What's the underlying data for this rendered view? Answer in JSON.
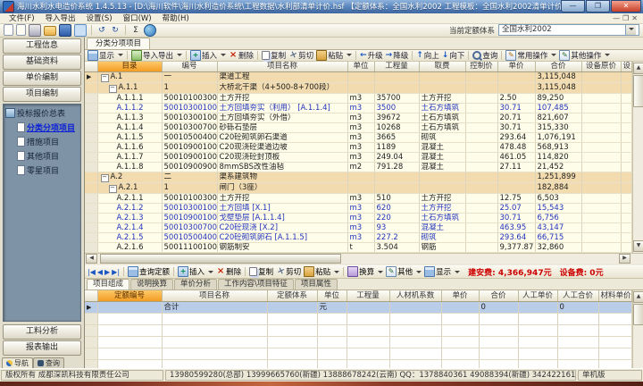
{
  "window": {
    "title": "海川水利水电造价系统 1.4.5.13 - [D:\\海川软件\\海川水利造价系统\\工程数据\\水利部清单计价.hsf 【定额体系：全国水利2002 工程模板：全国水利2002清单计价】]",
    "controls": {
      "minimize": "—",
      "maximize": "❐",
      "close": "✕"
    },
    "mdi_controls": [
      "—",
      "❐",
      "✕"
    ]
  },
  "menu": {
    "items": [
      "文件(F)",
      "导入导出",
      "设置(S)",
      "窗口(W)",
      "帮助(H)"
    ]
  },
  "quickbar": {
    "icons": [
      "new-file-icon",
      "open-file-icon",
      "print-icon",
      "folder-open-icon",
      "save-icon",
      "preview-icon",
      "undo-icon",
      "redo-icon",
      "sigma-icon",
      "globe-icon"
    ],
    "quota_label": "当前定额体系",
    "quota_value": "全国水利2002"
  },
  "sidebar": {
    "buttons_top": [
      "工程信息",
      "基础资料",
      "单价编制",
      "项目编制"
    ],
    "tree_root": "投标报价总表",
    "tree_items": [
      {
        "label": "分类分项项目",
        "active": true
      },
      {
        "label": "措施项目",
        "active": false
      },
      {
        "label": "其他项目",
        "active": false
      },
      {
        "label": "零星项目",
        "active": false
      }
    ],
    "buttons_bottom": [
      "工料分析",
      "报表输出"
    ],
    "tabs": [
      {
        "label": "导航",
        "icon": "compass-icon",
        "active": true
      },
      {
        "label": "查询",
        "icon": "binoculars-icon",
        "active": false
      }
    ]
  },
  "main": {
    "tab": "分类分项项目",
    "toolbar": [
      {
        "label": "显示",
        "icon": "table-icon",
        "caret": true
      },
      {
        "label": "导入导出",
        "icon": "import-export-icon",
        "caret": true,
        "sep": true
      },
      {
        "label": "插入",
        "icon": "insert-icon",
        "caret": true,
        "sep": true
      },
      {
        "label": "删除",
        "icon": "delete-icon"
      },
      {
        "label": "复制",
        "icon": "copy-icon",
        "sep": true
      },
      {
        "label": "剪切",
        "icon": "cut-icon"
      },
      {
        "label": "粘贴",
        "icon": "paste-icon",
        "caret": true
      },
      {
        "label": "升级",
        "arrow": "←",
        "sep": true
      },
      {
        "label": "降级",
        "arrow": "→"
      },
      {
        "label": "向上",
        "arrow": "↑",
        "sep": true
      },
      {
        "label": "向下",
        "arrow": "↓"
      },
      {
        "label": "查询",
        "icon": "search-icon",
        "sep": true
      },
      {
        "label": "常用操作",
        "icon": "common-ops-icon",
        "caret": true,
        "sep": true
      },
      {
        "label": "其他操作",
        "icon": "other-ops-icon",
        "caret": true
      }
    ],
    "grid": {
      "columns": [
        "目录",
        "编号",
        "项目名称",
        "单位",
        "工程量",
        "取费",
        "控制价",
        "单价",
        "合价",
        "设备原价",
        "设"
      ],
      "rows": [
        {
          "dir": "A.1",
          "code": "一",
          "name": "渠道工程",
          "unit": "",
          "qty": "",
          "fee": "",
          "price": "",
          "total": "3,115,048",
          "lvl": 0,
          "group": true,
          "sel": true
        },
        {
          "dir": "A.1.1",
          "code": "1",
          "name": "大桥北干渠（4+500-8+700段）",
          "unit": "",
          "qty": "",
          "fee": "",
          "price": "",
          "total": "3,115,048",
          "lvl": 1,
          "group": true
        },
        {
          "dir": "A.1.1.1",
          "code": "500101003001",
          "name": "土方开挖",
          "unit": "m3",
          "qty": "35700",
          "fee": "土方开挖",
          "price": "2.50",
          "total": "89,250",
          "lvl": 2
        },
        {
          "dir": "A.1.1.2",
          "code": "500103001001",
          "name": "土方回填夯实（利用） [A.1.1.4]",
          "unit": "m3",
          "qty": "3500",
          "fee": "土石方填筑",
          "price": "30.71",
          "total": "107,485",
          "lvl": 2,
          "blue": true
        },
        {
          "dir": "A.1.1.3",
          "code": "500103001002",
          "name": "土方回填夯实（外借）",
          "unit": "m3",
          "qty": "39672",
          "fee": "土石方填筑",
          "price": "20.71",
          "total": "821,607",
          "lvl": 2
        },
        {
          "dir": "A.1.1.4",
          "code": "500103007001",
          "name": "砂砾石垫层",
          "unit": "m3",
          "qty": "10268",
          "fee": "土石方填筑",
          "price": "30.71",
          "total": "315,330",
          "lvl": 2
        },
        {
          "dir": "A.1.1.5",
          "code": "500105004001",
          "name": "C20砼砌筑卵石渠道",
          "unit": "m3",
          "qty": "3665",
          "fee": "砌筑",
          "price": "293.64",
          "total": "1,076,191",
          "lvl": 2
        },
        {
          "dir": "A.1.1.6",
          "code": "500109001001",
          "name": "C20现浇砼渠道边坡",
          "unit": "m3",
          "qty": "1189",
          "fee": "混凝土",
          "price": "478.48",
          "total": "568,913",
          "lvl": 2
        },
        {
          "dir": "A.1.1.7",
          "code": "500109001002",
          "name": "C20现浇砼封顶板",
          "unit": "m3",
          "qty": "249.04",
          "fee": "混凝土",
          "price": "461.05",
          "total": "114,820",
          "lvl": 2
        },
        {
          "dir": "A.1.1.8",
          "code": "500109009003",
          "name": "8mmSBS改性油毡",
          "unit": "m2",
          "qty": "791.28",
          "fee": "混凝土",
          "price": "27.11",
          "total": "21,452",
          "lvl": 2
        },
        {
          "dir": "A.2",
          "code": "二",
          "name": "渠系建筑物",
          "unit": "",
          "qty": "",
          "fee": "",
          "price": "",
          "total": "1,251,899",
          "lvl": 0,
          "group": true
        },
        {
          "dir": "A.2.1",
          "code": "1",
          "name": "闸门（3座）",
          "unit": "",
          "qty": "",
          "fee": "",
          "price": "",
          "total": "182,884",
          "lvl": 1,
          "group": true
        },
        {
          "dir": "A.2.1.1",
          "code": "500101003002",
          "name": "土方开挖",
          "unit": "m3",
          "qty": "510",
          "fee": "土方开挖",
          "price": "12.75",
          "total": "6,503",
          "lvl": 2
        },
        {
          "dir": "A.2.1.2",
          "code": "500103001003",
          "name": "土方回填 [X.1]",
          "unit": "m3",
          "qty": "620",
          "fee": "土方开挖",
          "price": "25.07",
          "total": "15,543",
          "lvl": 2,
          "blue": true
        },
        {
          "dir": "A.2.1.3",
          "code": "500109001003",
          "name": "戈壁垫层 [A.1.1.4]",
          "unit": "m3",
          "qty": "220",
          "fee": "土石方填筑",
          "price": "30.71",
          "total": "6,756",
          "lvl": 2,
          "blue": true
        },
        {
          "dir": "A.2.1.4",
          "code": "500103007002",
          "name": "C20砼现浇 [X.2]",
          "unit": "m3",
          "qty": "93",
          "fee": "混凝土",
          "price": "463.95",
          "total": "43,147",
          "lvl": 2,
          "blue": true
        },
        {
          "dir": "A.2.1.5",
          "code": "500105004002",
          "name": "C20砼砌筑卵石 [A.1.1.5]",
          "unit": "m3",
          "qty": "227.2",
          "fee": "砌筑",
          "price": "293.64",
          "total": "66,715",
          "lvl": 2,
          "blue": true
        },
        {
          "dir": "A.2.1.6",
          "code": "500111001001",
          "name": "钢筋制安",
          "unit": "t",
          "qty": "3.504",
          "fee": "钢筋",
          "price": "9,377.87",
          "total": "32,860",
          "lvl": 2
        }
      ]
    }
  },
  "detail": {
    "nav_icons": [
      "first-record-icon",
      "prev-record-icon",
      "next-record-icon",
      "last-record-icon"
    ],
    "toolbar": [
      {
        "label": "查询定额",
        "icon": "search-quota-icon",
        "sep": true
      },
      {
        "label": "插入",
        "icon": "insert-icon",
        "caret": true,
        "sep": true
      },
      {
        "label": "删除",
        "icon": "delete-icon"
      },
      {
        "label": "复制",
        "icon": "copy-icon",
        "sep": true
      },
      {
        "label": "剪切",
        "icon": "cut-icon"
      },
      {
        "label": "粘贴",
        "icon": "paste-icon",
        "caret": true
      },
      {
        "label": "换算",
        "icon": "convert-icon",
        "caret": true,
        "sep": true
      },
      {
        "label": "其他",
        "icon": "other-ops-icon",
        "caret": true
      },
      {
        "label": "显示",
        "icon": "table-icon",
        "caret": true
      }
    ],
    "cost_jian_an": "建安费: 4,366,947元",
    "cost_she_bei": "设备费: 0元",
    "tabs": [
      {
        "label": "项目组成",
        "active": true
      },
      {
        "label": "说明换算",
        "active": false
      },
      {
        "label": "单价分析",
        "active": false
      },
      {
        "label": "工作内容\\项目特征",
        "active": false
      },
      {
        "label": "项目属性",
        "active": false
      }
    ],
    "grid": {
      "columns": [
        "定额编号",
        "项目名称",
        "定额体系",
        "单位",
        "工程量",
        "人材机系数",
        "单价",
        "合价",
        "人工单价",
        "人工合价",
        "材料单价"
      ],
      "rows": [
        {
          "code": "",
          "name": "合计",
          "system": "",
          "unit": "元",
          "qty": "",
          "coef": "",
          "price": "",
          "total": "0",
          "labor_price": "",
          "labor_total": "0",
          "mat_price": "",
          "sel": true
        },
        {
          "code": "",
          "name": "",
          "system": "",
          "unit": "",
          "qty": "",
          "coef": "",
          "price": "",
          "total": "",
          "labor_price": "",
          "labor_total": "",
          "mat_price": ""
        },
        {
          "code": "",
          "name": "",
          "system": "",
          "unit": "",
          "qty": "",
          "coef": "",
          "price": "",
          "total": "",
          "labor_price": "",
          "labor_total": "",
          "mat_price": ""
        },
        {
          "code": "",
          "name": "",
          "system": "",
          "unit": "",
          "qty": "",
          "coef": "",
          "price": "",
          "total": "",
          "labor_price": "",
          "labor_total": "",
          "mat_price": ""
        },
        {
          "code": "",
          "name": "",
          "system": "",
          "unit": "",
          "qty": "",
          "coef": "",
          "price": "",
          "total": "",
          "labor_price": "",
          "labor_total": "",
          "mat_price": ""
        },
        {
          "code": "",
          "name": "",
          "system": "",
          "unit": "",
          "qty": "",
          "coef": "",
          "price": "",
          "total": "",
          "labor_price": "",
          "labor_total": "",
          "mat_price": ""
        },
        {
          "code": "",
          "name": "",
          "system": "",
          "unit": "",
          "qty": "",
          "coef": "",
          "price": "",
          "total": "",
          "labor_price": "",
          "labor_total": "",
          "mat_price": ""
        }
      ]
    }
  },
  "statusbar": {
    "copyright": "版权所有 成都深凯科技有限责任公司",
    "contact": "13980599280(总部) 13999665760(新疆) 13888678242(云南) QQ：1378840361 49088394(新疆) 342422161(云南)",
    "edition": "单机版"
  },
  "colors": {
    "accent_orange": "#F29C22",
    "selection_blue": "#2A5CAA",
    "cost_red": "#CC0000",
    "group_tan": "#F2DBAE",
    "row_yellow": "#FEFDE9"
  }
}
